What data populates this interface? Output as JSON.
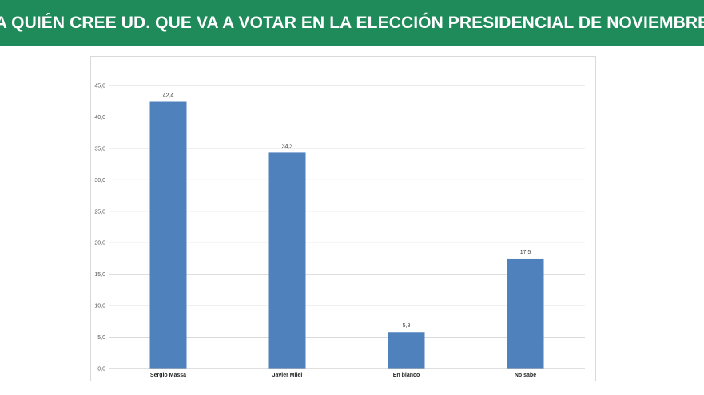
{
  "header": {
    "title": "¿A QUIÉN CREE UD. QUE VA A VOTAR EN LA ELECCIÓN PRESIDENCIAL DE NOVIEMBRE?"
  },
  "colors": {
    "header_bg": "#1f8a5a",
    "bar": "#4f81bd"
  },
  "chart_data": {
    "type": "bar",
    "title": "",
    "xlabel": "",
    "ylabel": "",
    "categories": [
      "Sergio Massa",
      "Javier Milei",
      "En blanco",
      "No sabe"
    ],
    "values": [
      42.4,
      34.3,
      5.8,
      17.5
    ],
    "value_labels": [
      "42,4",
      "34,3",
      "5,8",
      "17,5"
    ],
    "ylim": [
      0,
      45
    ],
    "y_ticks": [
      0,
      5,
      10,
      15,
      20,
      25,
      30,
      35,
      40,
      45
    ],
    "y_tick_labels": [
      "0,0",
      "5,0",
      "10,0",
      "15,0",
      "20,0",
      "25,0",
      "30,0",
      "35,0",
      "40,0",
      "45,0"
    ],
    "grid": true,
    "legend": "none"
  }
}
